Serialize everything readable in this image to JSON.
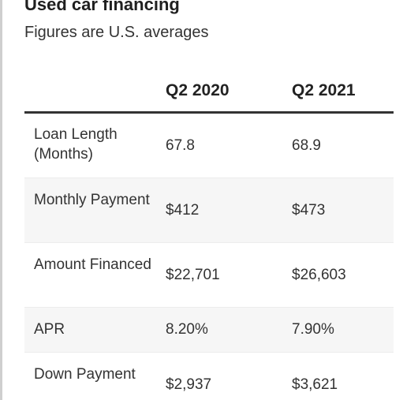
{
  "title": "Used car financing",
  "subtitle": "Figures are U.S. averages",
  "table": {
    "columns": [
      "Q2 2020",
      "Q2 2021"
    ],
    "rows": [
      {
        "label": "Loan Length (Months)",
        "q2_2020": "67.8",
        "q2_2021": "68.9"
      },
      {
        "label": "Monthly Payment",
        "q2_2020": "$412",
        "q2_2021": "$473"
      },
      {
        "label": "Amount Financed",
        "q2_2020": "$22,701",
        "q2_2021": "$26,603"
      },
      {
        "label": "APR",
        "q2_2020": "8.20%",
        "q2_2021": "7.90%"
      },
      {
        "label": "Down Payment",
        "q2_2020": "$2,937",
        "q2_2021": "$3,621"
      }
    ]
  }
}
